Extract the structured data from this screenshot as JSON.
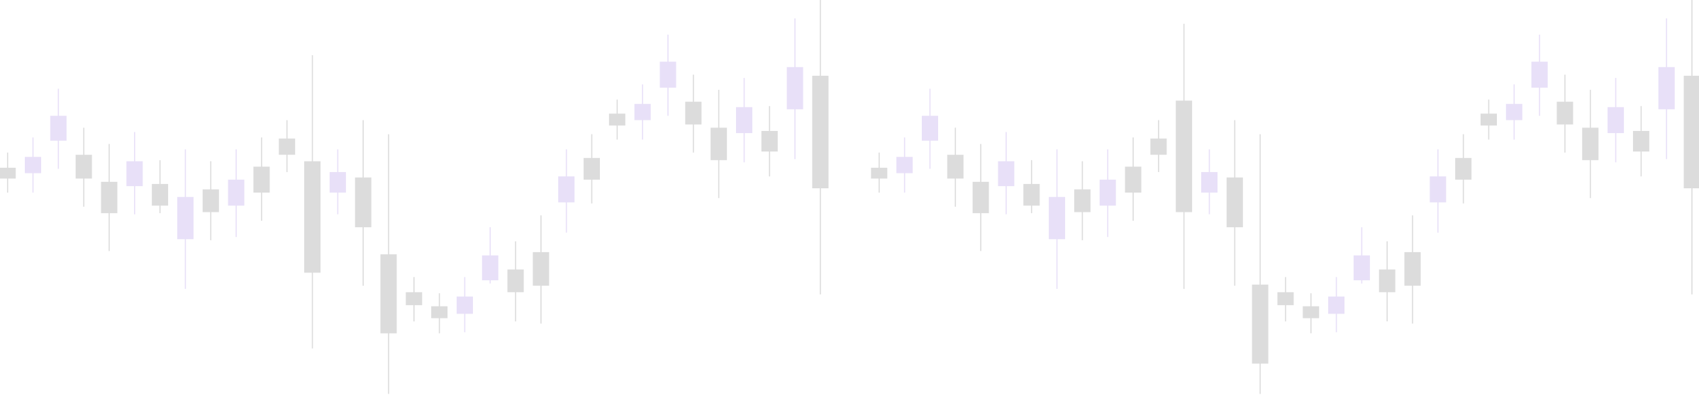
{
  "chart_data": [
    {
      "type": "candlestick",
      "up_color": "#e8e0f8",
      "down_color": "#dcdcdc",
      "ylim": [
        0,
        365
      ],
      "open": [
        210,
        205,
        235,
        222,
        197,
        193,
        195,
        144,
        190,
        175,
        211,
        237,
        216,
        187,
        201,
        130,
        95,
        82,
        75,
        106,
        116,
        132,
        178,
        219,
        260,
        254,
        284,
        271,
        247,
        242,
        244,
        264,
        295
      ],
      "high": [
        224,
        238,
        283,
        247,
        232,
        243,
        217,
        227,
        216,
        227,
        238,
        254,
        314,
        227,
        254,
        241,
        109,
        94,
        109,
        155,
        142,
        166,
        227,
        241,
        273,
        287,
        333,
        296,
        282,
        293,
        267,
        348,
        365
      ],
      "low": [
        187,
        187,
        209,
        174,
        133,
        167,
        168,
        98,
        143,
        146,
        161,
        206,
        43,
        167,
        101,
        1,
        68,
        57,
        58,
        103,
        68,
        66,
        150,
        177,
        236,
        236,
        258,
        224,
        182,
        215,
        202,
        218,
        93
      ],
      "close": [
        200,
        220,
        258,
        200,
        168,
        216,
        175,
        183,
        169,
        199,
        187,
        222,
        113,
        206,
        155,
        57,
        83,
        71,
        91,
        129,
        95,
        101,
        202,
        199,
        249,
        269,
        308,
        250,
        217,
        266,
        225,
        303,
        191
      ]
    },
    {
      "type": "candlestick",
      "up_color": "#e8e0f8",
      "down_color": "#dcdcdc",
      "ylim": [
        0,
        365
      ],
      "open": [
        210,
        205,
        235,
        222,
        197,
        193,
        195,
        144,
        190,
        175,
        211,
        237,
        272,
        187,
        201,
        102,
        95,
        82,
        75,
        106,
        116,
        132,
        178,
        219,
        260,
        254,
        284,
        271,
        247,
        242,
        244,
        264,
        295
      ],
      "high": [
        224,
        238,
        283,
        247,
        232,
        243,
        217,
        227,
        216,
        227,
        238,
        254,
        343,
        227,
        254,
        241,
        109,
        94,
        109,
        155,
        142,
        166,
        227,
        241,
        273,
        287,
        333,
        296,
        282,
        293,
        267,
        348,
        365
      ],
      "low": [
        187,
        187,
        209,
        174,
        133,
        167,
        168,
        98,
        143,
        146,
        161,
        206,
        98,
        167,
        101,
        1,
        68,
        57,
        58,
        103,
        68,
        66,
        150,
        177,
        236,
        236,
        258,
        224,
        182,
        215,
        202,
        218,
        93
      ],
      "close": [
        200,
        220,
        258,
        200,
        168,
        216,
        175,
        183,
        169,
        199,
        187,
        222,
        169,
        206,
        155,
        29,
        83,
        71,
        91,
        129,
        95,
        101,
        202,
        199,
        249,
        269,
        308,
        250,
        217,
        266,
        225,
        303,
        191
      ]
    }
  ]
}
